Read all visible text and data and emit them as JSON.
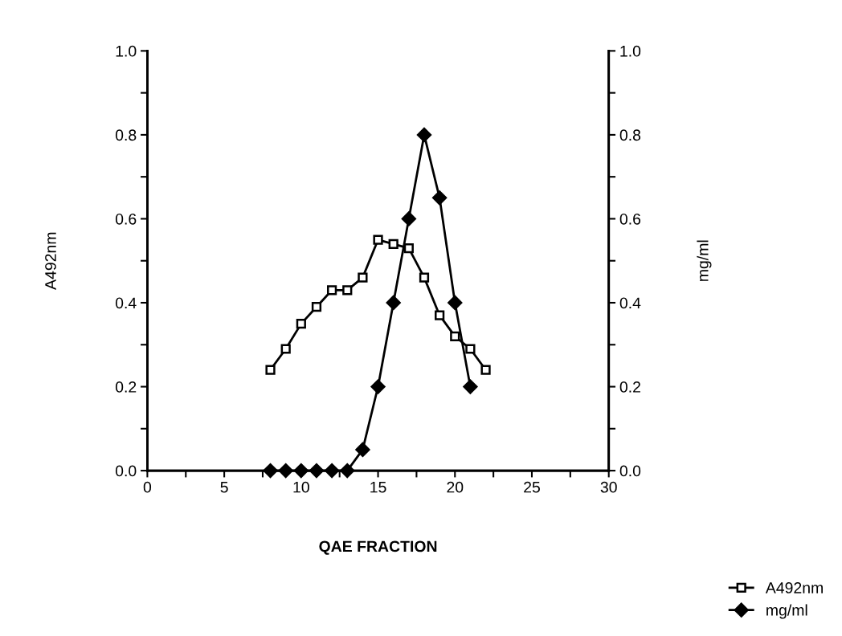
{
  "chart_data": {
    "type": "line",
    "xlabel": "QAE FRACTION",
    "ylabel": "A492nm",
    "y2label": "mg/ml",
    "x": [
      8,
      9,
      10,
      11,
      12,
      13,
      14,
      15,
      16,
      17,
      18,
      19,
      20,
      21,
      22
    ],
    "series": [
      {
        "name": "A492nm",
        "color": "#000000",
        "marker": "square",
        "values": [
          0.24,
          0.29,
          0.35,
          0.39,
          0.43,
          0.43,
          0.46,
          0.55,
          0.54,
          0.53,
          0.46,
          0.37,
          0.32,
          0.29,
          0.24
        ]
      },
      {
        "name": "mg/ml",
        "color": "#000000",
        "marker": "diamond",
        "x": [
          8,
          9,
          10,
          11,
          12,
          13,
          14,
          15,
          16,
          17,
          18,
          19,
          20,
          21
        ],
        "values": [
          0,
          0,
          0,
          0,
          0,
          0,
          0.05,
          0.2,
          0.4,
          0.6,
          0.8,
          0.65,
          0.4,
          0.2
        ]
      }
    ],
    "xlim": [
      0,
      30
    ],
    "xticks": [
      0,
      {
        "value": 2.5,
        "label": null
      },
      5,
      {
        "value": 7.5,
        "label": null
      },
      10,
      {
        "value": 12.5,
        "label": null
      },
      15,
      {
        "value": 17.5,
        "label": null
      },
      20,
      {
        "value": 22.5,
        "label": null
      },
      25,
      {
        "value": 27.5,
        "label": null
      },
      30
    ],
    "ylim": [
      0,
      1.0
    ],
    "yticks": [
      {
        "value": 0,
        "label": "0.0"
      },
      {
        "value": 0.1,
        "label": null
      },
      0.2,
      {
        "value": 0.3,
        "label": null
      },
      0.4,
      {
        "value": 0.5,
        "label": null
      },
      0.6,
      {
        "value": 0.7,
        "label": null
      },
      0.8,
      {
        "value": 0.9,
        "label": null
      },
      {
        "value": 1.0,
        "label": "1.0"
      }
    ],
    "y2lim": [
      0,
      1.0
    ],
    "y2ticks": [
      {
        "value": 0,
        "label": "0.0"
      },
      {
        "value": 0.1,
        "label": null
      },
      0.2,
      {
        "value": 0.3,
        "label": null
      },
      0.4,
      {
        "value": 0.5,
        "label": null
      },
      0.6,
      {
        "value": 0.7,
        "label": null
      },
      0.8,
      {
        "value": 0.9,
        "label": null
      },
      {
        "value": 1.0,
        "label": "1.0"
      }
    ],
    "grid": false,
    "legend": "bottom right",
    "line_style": "solid"
  }
}
